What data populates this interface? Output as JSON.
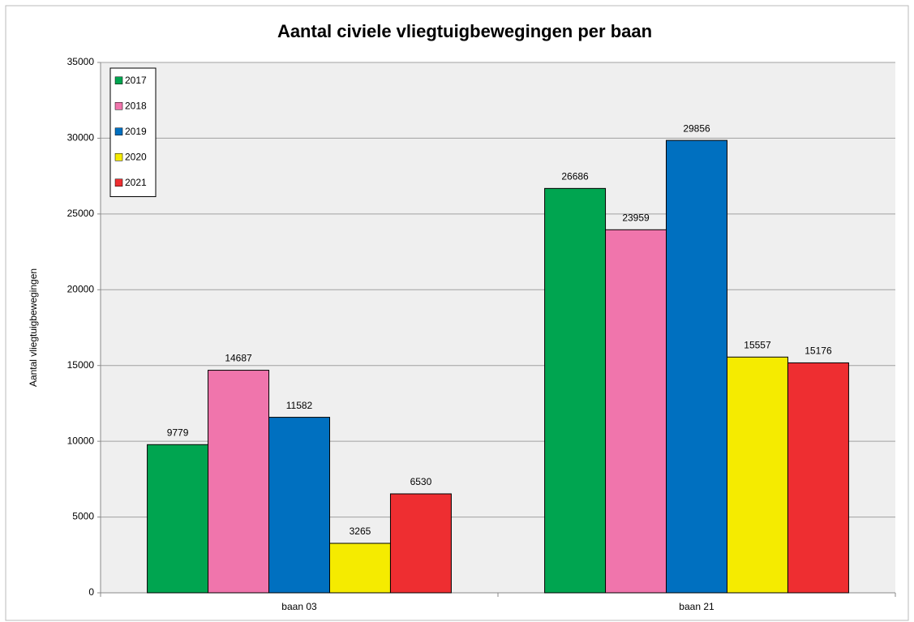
{
  "chart_data": {
    "type": "bar",
    "title": "Aantal civiele vliegtuigbewegingen per baan",
    "y_label": "Aantal vliegtuigbewegingen",
    "categories": [
      "baan 03",
      "baan 21"
    ],
    "series": [
      {
        "name": "2017",
        "color": "#00a550",
        "values": [
          9779,
          26686
        ]
      },
      {
        "name": "2018",
        "color": "#f075ac",
        "values": [
          14687,
          23959
        ]
      },
      {
        "name": "2019",
        "color": "#0070c0",
        "values": [
          11582,
          29856
        ]
      },
      {
        "name": "2020",
        "color": "#f5eb00",
        "values": [
          3265,
          15557
        ]
      },
      {
        "name": "2021",
        "color": "#ee2e31",
        "values": [
          6530,
          15176
        ]
      }
    ],
    "ylim": [
      0,
      35000
    ],
    "yticks": [
      0,
      5000,
      10000,
      15000,
      20000,
      25000,
      30000,
      35000
    ],
    "grid": true,
    "legend": "top-left"
  }
}
